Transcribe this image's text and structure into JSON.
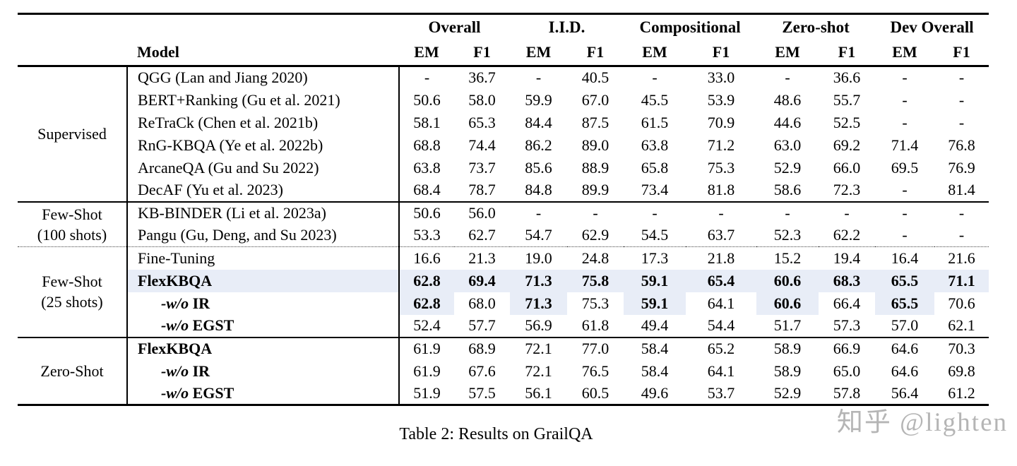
{
  "caption": "Table 2: Results on GrailQA",
  "watermark": "知乎 @lighten",
  "colors": {
    "highlight": "#e8edf7",
    "watermark": "#b5b5b5",
    "text": "#000000",
    "background": "#ffffff"
  },
  "table": {
    "model_header": "Model",
    "sub_headers": [
      "EM",
      "F1"
    ],
    "col_groups": [
      {
        "label": "Overall"
      },
      {
        "label": "I.I.D."
      },
      {
        "label": "Compositional"
      },
      {
        "label": "Zero-shot"
      },
      {
        "label": "Dev Overall"
      }
    ],
    "groups": [
      {
        "label_lines": [
          "Supervised"
        ],
        "divider": "none",
        "rows": [
          {
            "model_name": "QGG (Lan and Jiang 2020)",
            "values": [
              "-",
              "36.7",
              "-",
              "40.5",
              "-",
              "33.0",
              "-",
              "36.6",
              "-",
              "-"
            ]
          },
          {
            "model_name": "BERT+Ranking (Gu et al. 2021)",
            "values": [
              "50.6",
              "58.0",
              "59.9",
              "67.0",
              "45.5",
              "53.9",
              "48.6",
              "55.7",
              "-",
              "-"
            ]
          },
          {
            "model_name": "ReTraCk (Chen et al. 2021b)",
            "values": [
              "58.1",
              "65.3",
              "84.4",
              "87.5",
              "61.5",
              "70.9",
              "44.6",
              "52.5",
              "-",
              "-"
            ]
          },
          {
            "model_name": "RnG-KBQA (Ye et al. 2022b)",
            "values": [
              "68.8",
              "74.4",
              "86.2",
              "89.0",
              "63.8",
              "71.2",
              "63.0",
              "69.2",
              "71.4",
              "76.8"
            ]
          },
          {
            "model_name": "ArcaneQA (Gu and Su 2022)",
            "values": [
              "63.8",
              "73.7",
              "85.6",
              "88.9",
              "65.8",
              "75.3",
              "52.9",
              "66.0",
              "69.5",
              "76.9"
            ]
          },
          {
            "model_name": "DecAF (Yu et al. 2023)",
            "values": [
              "68.4",
              "78.7",
              "84.8",
              "89.9",
              "73.4",
              "81.8",
              "58.6",
              "72.3",
              "-",
              "81.4"
            ]
          }
        ]
      },
      {
        "label_lines": [
          "Few-Shot",
          "(100 shots)"
        ],
        "divider": "solid",
        "rows": [
          {
            "model_name": "KB-BINDER (Li et al. 2023a)",
            "values": [
              "50.6",
              "56.0",
              "-",
              "-",
              "-",
              "-",
              "-",
              "-",
              "-",
              "-"
            ]
          },
          {
            "model_name": "Pangu (Gu, Deng, and Su 2023)",
            "values": [
              "53.3",
              "62.7",
              "54.7",
              "62.9",
              "54.5",
              "63.7",
              "52.3",
              "62.2",
              "-",
              "-"
            ]
          }
        ]
      },
      {
        "label_lines": [
          "Few-Shot",
          "(25 shots)"
        ],
        "divider": "dotted",
        "rows": [
          {
            "model_name": "Fine-Tuning",
            "values": [
              "16.6",
              "21.3",
              "19.0",
              "24.8",
              "17.3",
              "21.8",
              "15.2",
              "19.4",
              "16.4",
              "21.6"
            ]
          },
          {
            "model_name": "FlexKBQA",
            "model_bold": true,
            "row_highlight": true,
            "bold_values": [
              0,
              1,
              2,
              3,
              4,
              5,
              6,
              7,
              8,
              9
            ],
            "values": [
              "62.8",
              "69.4",
              "71.3",
              "75.8",
              "59.1",
              "65.4",
              "60.6",
              "68.3",
              "65.5",
              "71.1"
            ]
          },
          {
            "model_prefix": "-w/o",
            "model_name": "IR",
            "indent": true,
            "model_bold": true,
            "bold_values": [
              0,
              2,
              4,
              6,
              8
            ],
            "highlight_values": [
              0,
              2,
              4,
              6,
              8
            ],
            "values": [
              "62.8",
              "68.0",
              "71.3",
              "75.3",
              "59.1",
              "64.1",
              "60.6",
              "66.4",
              "65.5",
              "70.6"
            ]
          },
          {
            "model_prefix": "-w/o",
            "model_name": "EGST",
            "indent": true,
            "model_bold": true,
            "values": [
              "52.4",
              "57.7",
              "56.9",
              "61.8",
              "49.4",
              "54.4",
              "51.7",
              "57.3",
              "57.0",
              "62.1"
            ]
          }
        ]
      },
      {
        "label_lines": [
          "Zero-Shot"
        ],
        "divider": "solid",
        "rows": [
          {
            "model_name": "FlexKBQA",
            "model_bold": true,
            "values": [
              "61.9",
              "68.9",
              "72.1",
              "77.0",
              "58.4",
              "65.2",
              "58.9",
              "66.9",
              "64.6",
              "70.3"
            ]
          },
          {
            "model_prefix": "-w/o",
            "model_name": "IR",
            "indent": true,
            "model_bold": true,
            "values": [
              "61.9",
              "67.6",
              "72.1",
              "76.5",
              "58.4",
              "64.1",
              "58.9",
              "65.0",
              "64.6",
              "69.8"
            ]
          },
          {
            "model_prefix": "-w/o",
            "model_name": "EGST",
            "indent": true,
            "model_bold": true,
            "values": [
              "51.9",
              "57.5",
              "56.1",
              "60.5",
              "49.6",
              "53.7",
              "52.9",
              "57.8",
              "56.4",
              "61.2"
            ]
          }
        ]
      }
    ]
  }
}
